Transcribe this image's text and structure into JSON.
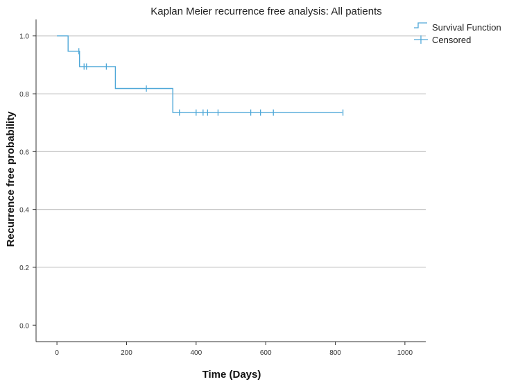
{
  "chart_data": {
    "type": "line",
    "title": "Kaplan Meier recurrence free analysis: All patients",
    "xlabel": "Time (Days)",
    "ylabel": "Recurrence free probability",
    "xlim": [
      -60,
      1060
    ],
    "ylim": [
      -0.057,
      1.057
    ],
    "x_ticks": [
      0,
      200,
      400,
      600,
      800,
      1000
    ],
    "x_tick_labels": [
      "0",
      "200",
      "400",
      "600",
      "800",
      "1000"
    ],
    "y_ticks": [
      0.0,
      0.2,
      0.4,
      0.6,
      0.8,
      1.0
    ],
    "y_tick_labels": [
      "0.0",
      "0.2",
      "0.4",
      "0.6",
      "0.8",
      "1.0"
    ],
    "grid": "horizontal",
    "legend_position": "top-right",
    "legend": [
      "Survival Function",
      "Censored"
    ],
    "colors": {
      "line": "#4fa8d8",
      "grid": "#c8c8c8",
      "axis": "#333333"
    },
    "series": [
      {
        "name": "Survival Function",
        "kind": "step",
        "x": [
          0,
          32,
          32,
          65,
          65,
          168,
          168,
          333,
          333,
          820
        ],
        "y": [
          1.0,
          1.0,
          0.947,
          0.947,
          0.894,
          0.894,
          0.818,
          0.818,
          0.735,
          0.735
        ]
      },
      {
        "name": "Censored",
        "kind": "markers",
        "x": [
          63,
          78,
          85,
          142,
          257,
          352,
          400,
          420,
          433,
          463,
          557,
          585,
          622,
          822
        ],
        "y": [
          0.947,
          0.894,
          0.894,
          0.894,
          0.818,
          0.735,
          0.735,
          0.735,
          0.735,
          0.735,
          0.735,
          0.735,
          0.735,
          0.735
        ]
      }
    ]
  }
}
